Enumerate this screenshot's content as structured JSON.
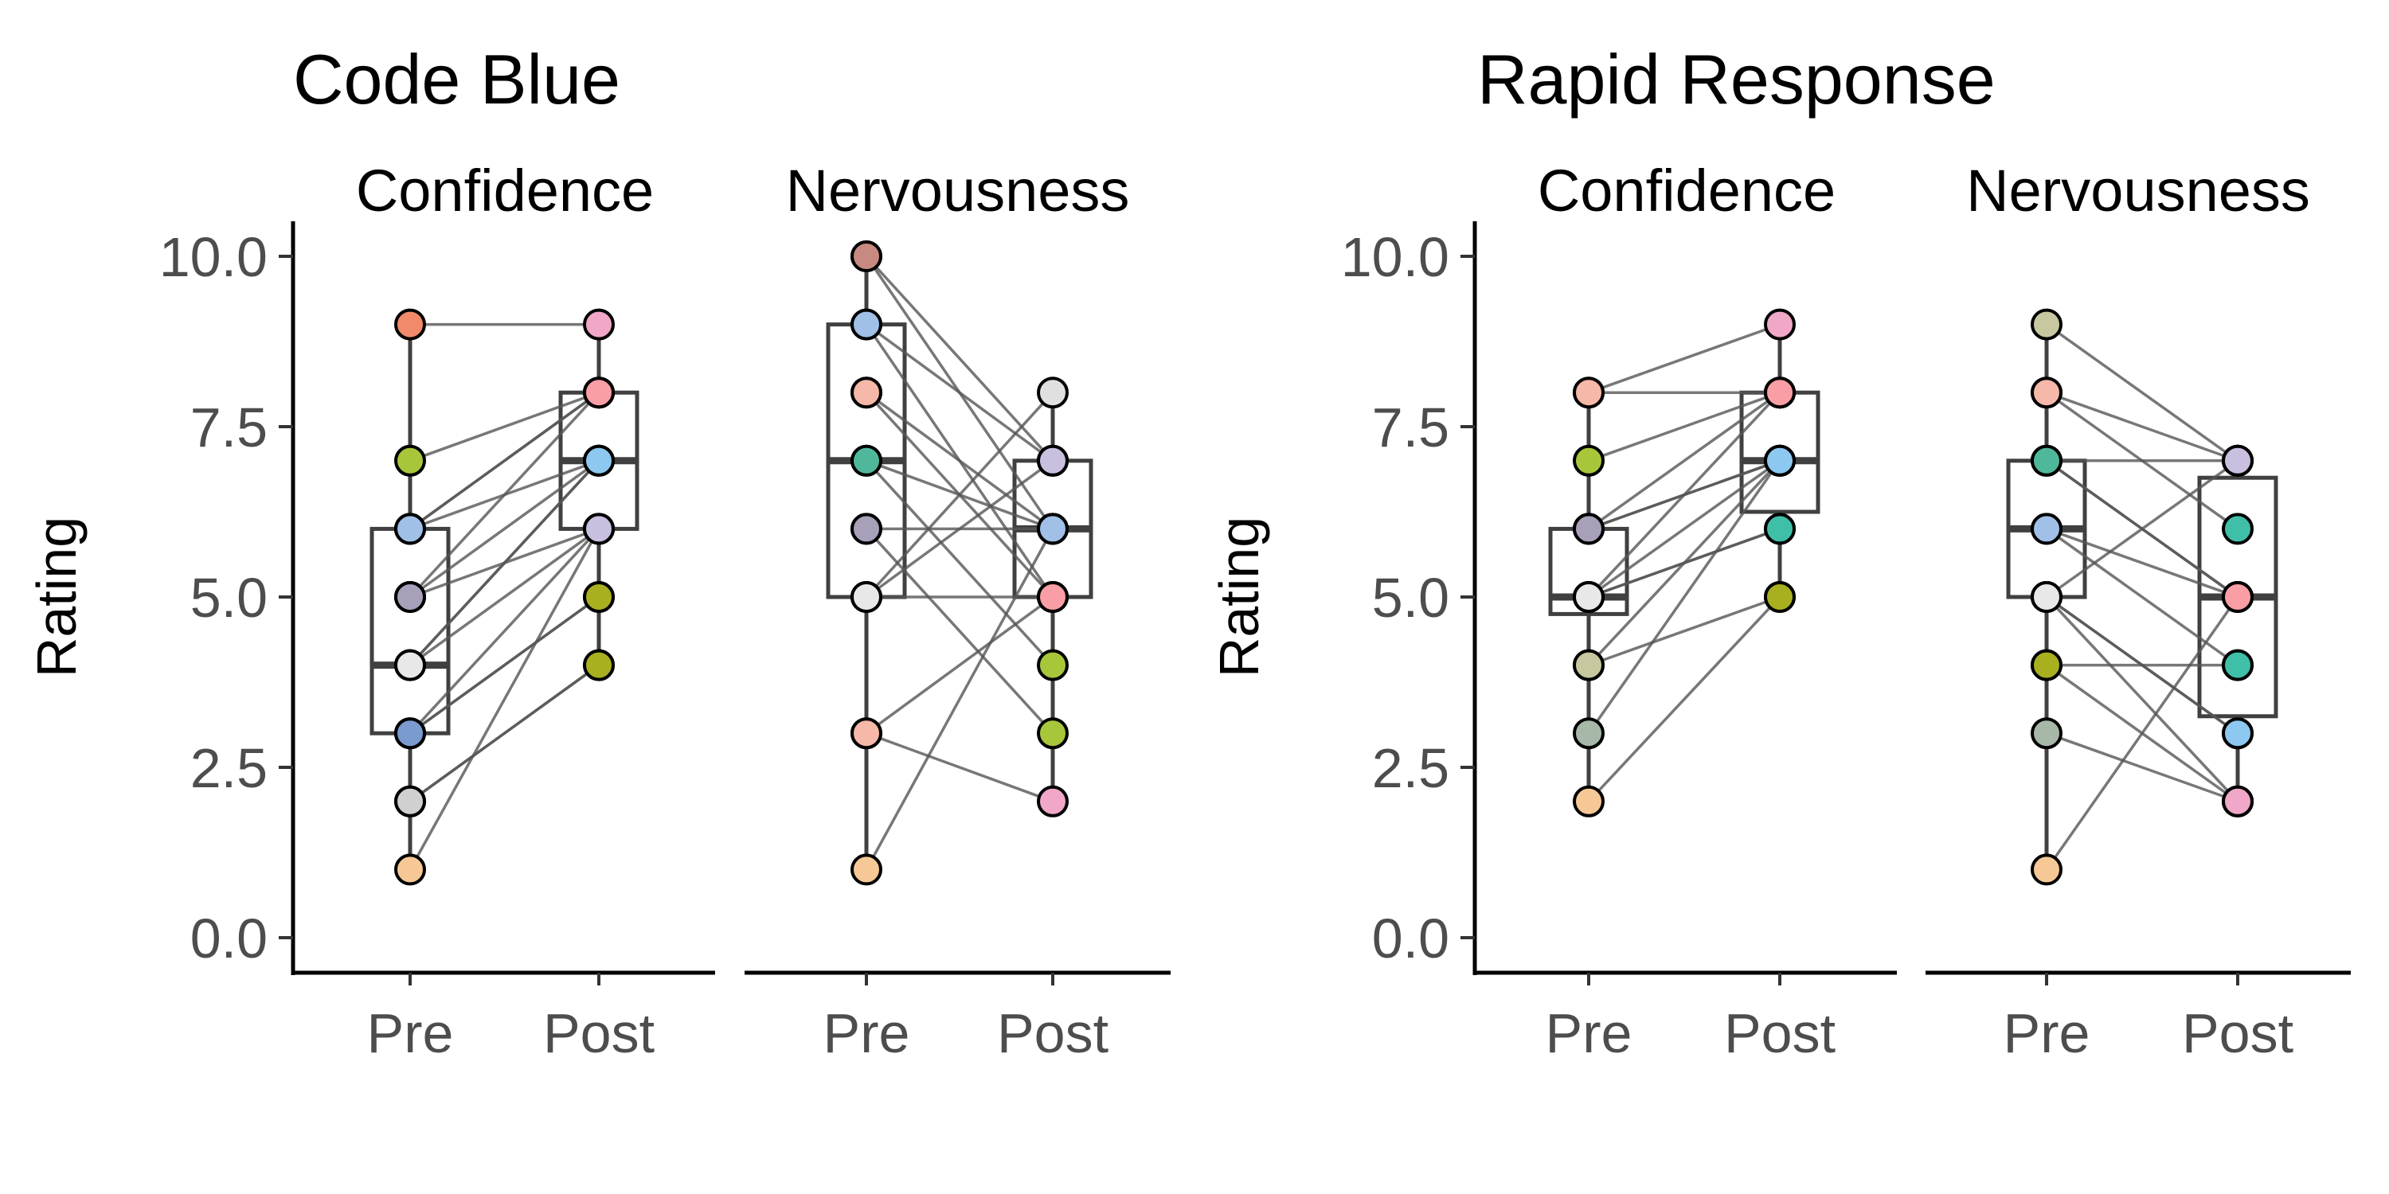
{
  "chart_data": [
    {
      "type": "box",
      "title": "Code Blue",
      "ylabel": "Rating",
      "ylim": [
        0,
        10
      ],
      "yticks": [
        "0.0",
        "2.5",
        "5.0",
        "7.5",
        "10.0"
      ],
      "categories": [
        "Pre",
        "Post"
      ],
      "facets": [
        {
          "label": "Confidence",
          "box": {
            "Pre": [
              1,
              3,
              4,
              6,
              9
            ],
            "Post": [
              4,
              6,
              7,
              8,
              9
            ]
          },
          "pairs": [
            [
              9,
              9,
              "#f08a6a",
              "#f1a7c8"
            ],
            [
              7,
              8,
              "#a8c63a",
              "#fa9ea6"
            ],
            [
              6,
              8,
              "#c9c0e0",
              "#fa9ea6"
            ],
            [
              6,
              7,
              "#8f8f8f",
              "#8cc8f0"
            ],
            [
              6,
              8,
              "#a0c0e8",
              "#fa9ea6"
            ],
            [
              5,
              7,
              "#40bfa8",
              "#8cc8f0"
            ],
            [
              5,
              6,
              "#8acbe0",
              "#8cc8f0"
            ],
            [
              5,
              8,
              "#a8a0b8",
              "#fa9ea6"
            ],
            [
              4,
              7,
              "#c8c8a0",
              "#8cc8f0"
            ],
            [
              4,
              7,
              "#c88a80",
              "#8cc8f0"
            ],
            [
              4,
              6,
              "#e8e8e8",
              "#8cc8f0"
            ],
            [
              3,
              6,
              "#50b89a",
              "#a8b020"
            ],
            [
              3,
              5,
              "#ddd5a8",
              "#a8b020"
            ],
            [
              3,
              5,
              "#7a9ad0",
              "#a8b020"
            ],
            [
              2,
              4,
              "#a8b8a8",
              "#a8b020"
            ],
            [
              2,
              4,
              "#d0d0d0",
              "#a8b020"
            ],
            [
              1,
              6,
              "#f6c896",
              "#c9c0e0"
            ]
          ]
        },
        {
          "label": "Nervousness",
          "box": {
            "Pre": [
              1,
              5,
              7,
              9,
              10
            ],
            "Post": [
              2,
              5,
              6,
              7,
              8
            ]
          },
          "pairs": [
            [
              10,
              7,
              "#c8c080",
              "#c9c0e0"
            ],
            [
              10,
              6,
              "#c88a80",
              "#8cc8f0"
            ],
            [
              9,
              5,
              "#8cc8f0",
              "#fa9ea6"
            ],
            [
              9,
              7,
              "#a0c0e8",
              "#c9c0e0"
            ],
            [
              8,
              5,
              "#fa9ea6",
              "#f6c896"
            ],
            [
              8,
              6,
              "#f6b8a8",
              "#a0c0e8"
            ],
            [
              7,
              4,
              "#40bfa8",
              "#a8c63a"
            ],
            [
              7,
              6,
              "#50b89a",
              "#a0c0e8"
            ],
            [
              6,
              3,
              "#a8b020",
              "#a8c63a"
            ],
            [
              6,
              6,
              "#a8a0b8",
              "#8cc8f0"
            ],
            [
              5,
              5,
              "#f1a7c8",
              "#fa9ea6"
            ],
            [
              5,
              7,
              "#fa9ea6",
              "#c9c0e0"
            ],
            [
              5,
              8,
              "#e8e8e8",
              "#e0e0e0"
            ],
            [
              3,
              2,
              "#f08a6a",
              "#f1a7c8"
            ],
            [
              3,
              5,
              "#f6b8a8",
              "#fa9ea6"
            ],
            [
              1,
              6,
              "#f6c896",
              "#a0c0e8"
            ]
          ]
        }
      ]
    },
    {
      "type": "box",
      "title": "Rapid Response",
      "ylabel": "Rating",
      "ylim": [
        0,
        10
      ],
      "yticks": [
        "0.0",
        "2.5",
        "5.0",
        "7.5",
        "10.0"
      ],
      "categories": [
        "Pre",
        "Post"
      ],
      "facets": [
        {
          "label": "Confidence",
          "box": {
            "Pre": [
              2,
              4.75,
              5,
              6,
              8
            ],
            "Post": [
              5,
              6.25,
              7,
              8,
              9
            ]
          },
          "pairs": [
            [
              8,
              9,
              "#f08a6a",
              "#f1a7c8"
            ],
            [
              8,
              8,
              "#f6b8a8",
              "#fa9ea6"
            ],
            [
              7,
              8,
              "#a8c63a",
              "#fa9ea6"
            ],
            [
              6,
              8,
              "#7a9ad0",
              "#fa9ea6"
            ],
            [
              6,
              7,
              "#a0c0e8",
              "#8cc8f0"
            ],
            [
              6,
              7,
              "#a8a0b8",
              "#8cc8f0"
            ],
            [
              5,
              6,
              "#8acbe0",
              "#40bfa8"
            ],
            [
              5,
              7,
              "#c88a80",
              "#8cc8f0"
            ],
            [
              5,
              8,
              "#40bfa8",
              "#fa9ea6"
            ],
            [
              5,
              6,
              "#e8e8e8",
              "#40bfa8"
            ],
            [
              4,
              5,
              "#a8b020",
              "#a8b020"
            ],
            [
              4,
              7,
              "#c8c8a0",
              "#8cc8f0"
            ],
            [
              3,
              7,
              "#a8b8a8",
              "#8cc8f0"
            ],
            [
              2,
              5,
              "#f6c896",
              "#a8b020"
            ]
          ]
        },
        {
          "label": "Nervousness",
          "box": {
            "Pre": [
              1,
              5,
              6,
              7,
              9
            ],
            "Post": [
              2,
              3.25,
              5,
              6.75,
              7
            ]
          },
          "pairs": [
            [
              9,
              7,
              "#c8c8a0",
              "#c9c0e0"
            ],
            [
              8,
              7,
              "#a8a0b8",
              "#c9c0e0"
            ],
            [
              8,
              6,
              "#f6b8a8",
              "#40bfa8"
            ],
            [
              7,
              7,
              "#c88a80",
              "#c9c0e0"
            ],
            [
              7,
              5,
              "#a8c63a",
              "#fa9ea6"
            ],
            [
              7,
              5,
              "#50b89a",
              "#fa9ea6"
            ],
            [
              6,
              5,
              "#c8c8a0",
              "#fa9ea6"
            ],
            [
              6,
              4,
              "#a0c0e8",
              "#40bfa8"
            ],
            [
              5,
              3,
              "#fa9ea6",
              "#8cc8f0"
            ],
            [
              5,
              2,
              "#f1a7c8",
              "#f1a7c8"
            ],
            [
              5,
              7,
              "#8acbe0",
              "#c9c0e0"
            ],
            [
              5,
              3,
              "#e8e8e8",
              "#8cc8f0"
            ],
            [
              4,
              4,
              "#f08a6a",
              "#40bfa8"
            ],
            [
              4,
              2,
              "#a8b020",
              "#f1a7c8"
            ],
            [
              3,
              2,
              "#a8b8a8",
              "#f1a7c8"
            ],
            [
              1,
              5,
              "#f6c896",
              "#fa9ea6"
            ]
          ]
        }
      ]
    }
  ]
}
